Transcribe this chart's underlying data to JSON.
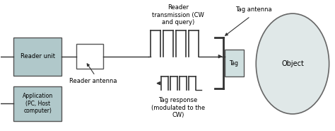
{
  "bg_color": "#ffffff",
  "box_fill": "#b0c8ca",
  "box_edge": "#555555",
  "antenna_fill": "#ffffff",
  "antenna_edge": "#555555",
  "object_fill": "#e0e8e8",
  "object_edge": "#666666",
  "tag_fill": "#c8d8d8",
  "line_color": "#333333",
  "arrow_color": "#333333",
  "reader_tx_label": "Reader\ntransmission (CW\nand query)",
  "tag_resp_label": "Tag response\n(modulated to the\nCW)",
  "tag_ant_label": "Tag antenna",
  "tag_label": "Tag",
  "reader_label": "Reader unit",
  "app_label": "Application\n(PC, Host\ncomputer)",
  "reader_ant_label": "Reader antenna"
}
